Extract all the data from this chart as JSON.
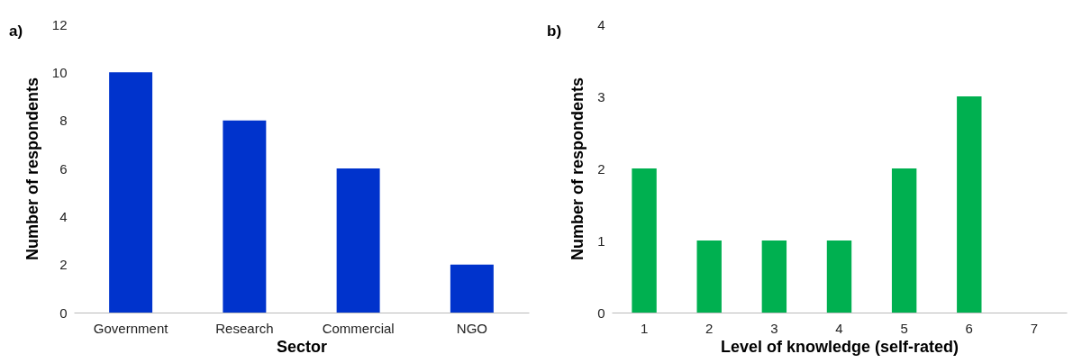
{
  "chart_data": [
    {
      "type": "bar",
      "title": "a)",
      "xlabel": "Sector",
      "ylabel": "Number of respondents",
      "categories": [
        "Government",
        "Research",
        "Commercial",
        "NGO"
      ],
      "values": [
        10,
        8,
        6,
        2
      ],
      "color": "#0033cc",
      "ylim": [
        0,
        12
      ],
      "yticks": [
        0,
        2,
        4,
        6,
        8,
        10,
        12
      ],
      "grid": false
    },
    {
      "type": "bar",
      "title": "b)",
      "xlabel": "Level of knowledge (self-rated)",
      "ylabel": "Number of respondents",
      "categories": [
        "1",
        "2",
        "3",
        "4",
        "5",
        "6",
        "7"
      ],
      "values": [
        2,
        1,
        1,
        1,
        2,
        3,
        0
      ],
      "color": "#00b050",
      "ylim": [
        0,
        4
      ],
      "yticks": [
        0,
        1,
        2,
        3,
        4
      ],
      "grid": false
    }
  ]
}
